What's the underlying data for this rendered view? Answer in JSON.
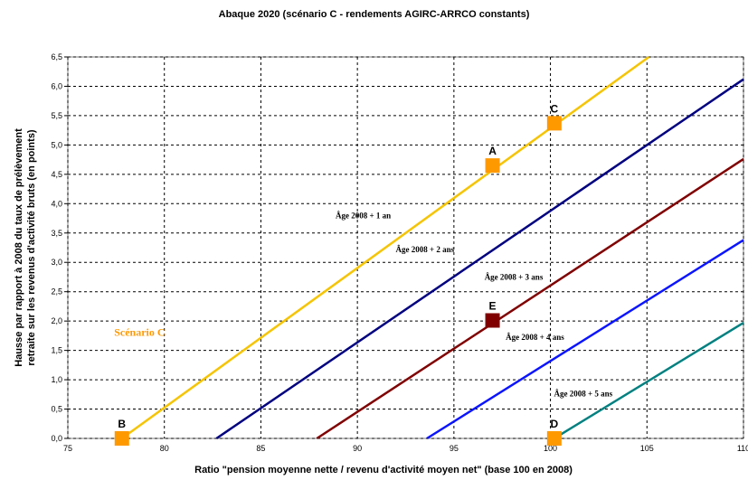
{
  "chart_data": {
    "type": "line",
    "title": "Abaque 2020 (scénario C - rendements AGIRC-ARRCO constants)",
    "xlabel": "Ratio \"pension moyenne nette / revenu d'activité moyen net\" (base 100 en 2008)",
    "ylabel_line1": "Hausse par rapport à 2008 du taux de prélèvement",
    "ylabel_line2": "retraite sur les revenus d'activité bruts (en points)",
    "xlim": [
      75,
      110
    ],
    "ylim": [
      0,
      6.5
    ],
    "x_ticks": [
      "75",
      "80",
      "85",
      "90",
      "95",
      "100",
      "105",
      "110"
    ],
    "y_ticks": [
      "0,0",
      "0,5",
      "1,0",
      "1,5",
      "2,0",
      "2,5",
      "3,0",
      "3,5",
      "4,0",
      "4,5",
      "5,0",
      "5,5",
      "6,0",
      "6,5"
    ],
    "grid": true,
    "series": [
      {
        "label": "Scénario C",
        "color": "#f5c400",
        "x": [
          77.8,
          105.1
        ],
        "y": [
          0,
          6.5
        ]
      },
      {
        "label": "Âge 2008 + 1 an",
        "color": "#000080",
        "x": [
          82.7,
          110
        ],
        "y": [
          0,
          6.12
        ]
      },
      {
        "label": "Âge 2008 + 2 ans",
        "color": "#800000",
        "x": [
          87.9,
          110
        ],
        "y": [
          0,
          4.76
        ]
      },
      {
        "label": "Âge 2008 + 3 ans",
        "color": "#0a14ff",
        "x": [
          93.6,
          110
        ],
        "y": [
          0,
          3.38
        ]
      },
      {
        "label": "Âge 2008 + 4 ans",
        "color": "#008080",
        "x": [
          100.2,
          110
        ],
        "y": [
          0,
          1.97
        ]
      }
    ],
    "line_labels": [
      {
        "text": "Âge 2008 + 1 an",
        "x": 90.3,
        "y": 3.75
      },
      {
        "text": "Âge 2008 + 2 ans",
        "x": 93.5,
        "y": 3.17
      },
      {
        "text": "Âge 2008 + 3 ans",
        "x": 98.1,
        "y": 2.7
      },
      {
        "text": "Âge 2008 + 4 ans",
        "x": 99.2,
        "y": 1.68
      },
      {
        "text": "Âge 2008 + 5 ans",
        "x": 101.7,
        "y": 0.72
      }
    ],
    "points": [
      {
        "label": "A",
        "x": 97.0,
        "y": 4.65,
        "color": "#ff9900"
      },
      {
        "label": "B",
        "x": 77.8,
        "y": 0.0,
        "color": "#ff9900"
      },
      {
        "label": "C",
        "x": 100.2,
        "y": 5.37,
        "color": "#ff9900"
      },
      {
        "label": "D",
        "x": 100.2,
        "y": 0.0,
        "color": "#ff9900"
      },
      {
        "label": "E",
        "x": 97.0,
        "y": 2.01,
        "color": "#800000"
      }
    ],
    "annotations": [
      {
        "text": "Scénario C",
        "x": 77.4,
        "y": 1.75,
        "color": "#ff9900"
      }
    ]
  }
}
